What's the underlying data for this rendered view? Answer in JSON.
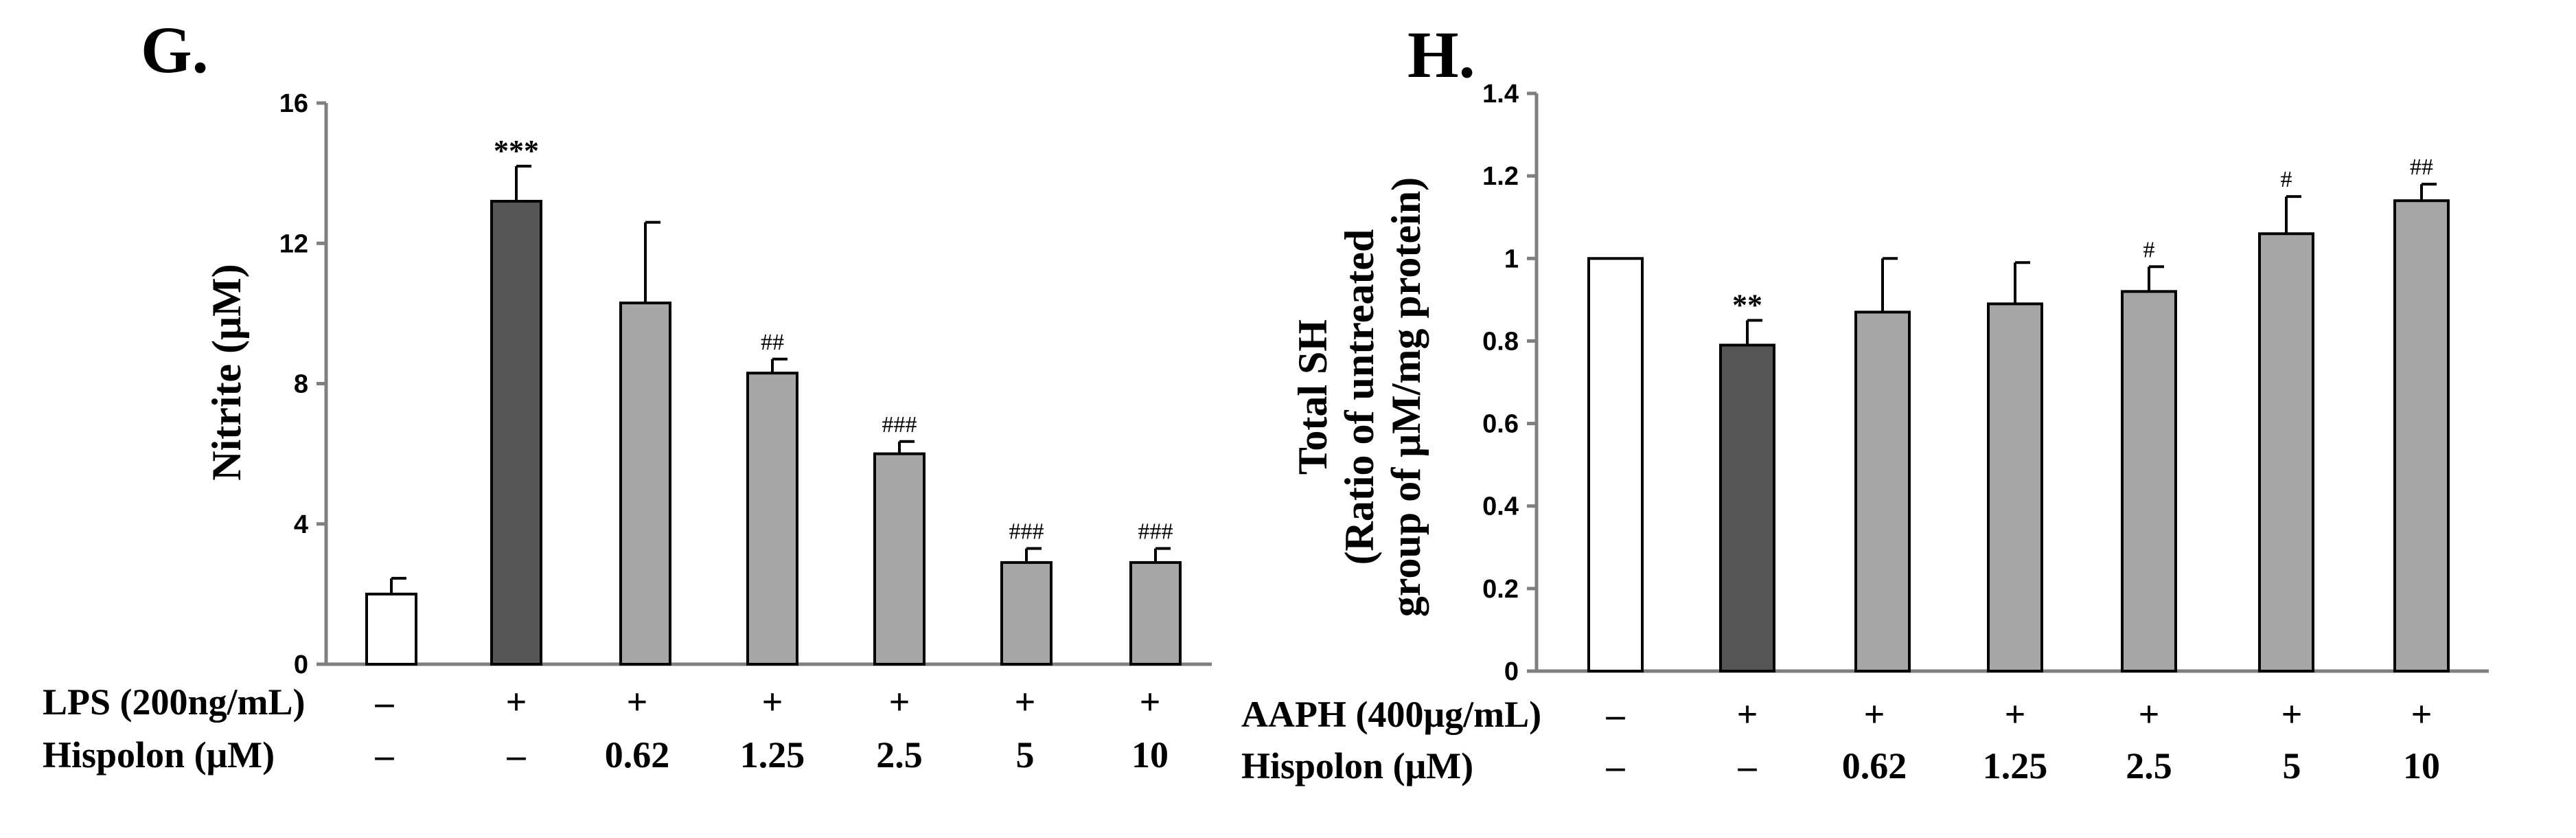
{
  "colors": {
    "white_bar": "#ffffff",
    "dark_bar": "#555555",
    "gray_bar": "#a6a6a6",
    "axis": "#7f7f7f",
    "edge": "#000000"
  },
  "chart_data": [
    {
      "type": "bar",
      "panel_label": "G.",
      "ylabel": "Nitrite (μM)",
      "ylim": [
        0,
        16
      ],
      "yticks": [
        "0",
        "4",
        "8",
        "12",
        "16"
      ],
      "values": [
        2.0,
        13.2,
        10.3,
        8.3,
        6.0,
        2.9,
        2.9
      ],
      "errors": [
        0.45,
        1.0,
        2.3,
        0.4,
        0.35,
        0.4,
        0.4
      ],
      "bar_styles": [
        "white",
        "dark",
        "gray",
        "gray",
        "gray",
        "gray",
        "gray"
      ],
      "significance": [
        "",
        "***",
        "",
        "##",
        "###",
        "###",
        "###"
      ],
      "conditions": [
        {
          "label": "LPS (200ng/mL)",
          "values": [
            "–",
            "+",
            "+",
            "+",
            "+",
            "+",
            "+"
          ]
        },
        {
          "label": "Hispolon (μM)",
          "values": [
            "–",
            "–",
            "0.62",
            "1.25",
            "2.5",
            "5",
            "10"
          ]
        }
      ]
    },
    {
      "type": "bar",
      "panel_label": "H.",
      "ylabel_lines": [
        "Total SH",
        "(Ratio of untreated",
        "group of μM/mg protein)"
      ],
      "ylim": [
        0,
        1.4
      ],
      "yticks": [
        "0",
        "0.2",
        "0.4",
        "0.6",
        "0.8",
        "1",
        "1.2",
        "1.4"
      ],
      "values": [
        1.0,
        0.79,
        0.87,
        0.89,
        0.92,
        1.06,
        1.14
      ],
      "errors": [
        0.0,
        0.06,
        0.13,
        0.1,
        0.06,
        0.09,
        0.04
      ],
      "bar_styles": [
        "white",
        "dark",
        "gray",
        "gray",
        "gray",
        "gray",
        "gray"
      ],
      "significance": [
        "",
        "**",
        "",
        "",
        "#",
        "#",
        "##"
      ],
      "conditions": [
        {
          "label": "AAPH (400μg/mL)",
          "values": [
            "–",
            "+",
            "+",
            "+",
            "+",
            "+",
            "+"
          ]
        },
        {
          "label": "Hispolon (μM)",
          "values": [
            "–",
            "–",
            "0.62",
            "1.25",
            "2.5",
            "5",
            "10"
          ]
        }
      ]
    }
  ]
}
